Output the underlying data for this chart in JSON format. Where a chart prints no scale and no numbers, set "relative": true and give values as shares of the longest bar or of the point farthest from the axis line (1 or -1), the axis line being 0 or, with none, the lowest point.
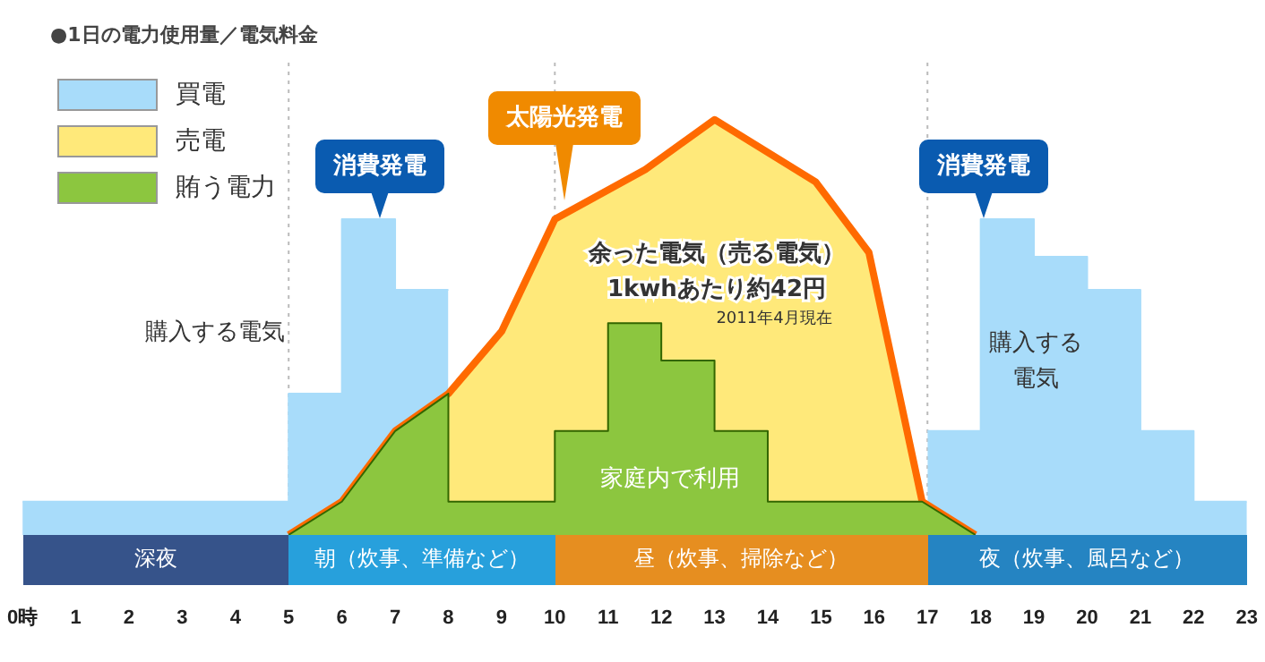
{
  "chart_data": {
    "type": "area",
    "title": "●1日の電力使用量／電気料金",
    "relative": true,
    "xlim": [
      0,
      23
    ],
    "xticks": [
      {
        "value": 0,
        "label": "0時"
      },
      1,
      2,
      3,
      4,
      5,
      6,
      7,
      8,
      9,
      10,
      11,
      12,
      13,
      14,
      15,
      16,
      17,
      18,
      19,
      20,
      21,
      22,
      23
    ],
    "series": [
      {
        "name": "買電",
        "color": "#a8dcfa",
        "x": [
          0,
          5,
          5,
          6,
          6,
          7,
          7,
          8,
          12,
          17,
          18,
          18,
          19,
          19,
          20,
          20,
          21,
          21,
          22,
          22,
          23
        ],
        "values": [
          0.08,
          0.08,
          0.34,
          0.34,
          0.76,
          0.76,
          0.59,
          0.59,
          null,
          0.25,
          0.25,
          0.76,
          0.76,
          0.67,
          0.67,
          0.59,
          0.59,
          0.25,
          0.25,
          0.08,
          0.08
        ]
      },
      {
        "name": "売電",
        "color": "#ffe97a",
        "x": [
          5,
          6,
          7,
          8,
          9,
          10,
          11.7,
          13,
          14.9,
          15.9,
          16.9,
          17.9
        ],
        "values": [
          0,
          0.08,
          0.25,
          0.34,
          0.49,
          0.76,
          0.88,
          1,
          0.85,
          0.68,
          0.08,
          0
        ]
      },
      {
        "name": "賄う電力",
        "color": "#8cc63f",
        "x": [
          5,
          6,
          7,
          8,
          8,
          10,
          10,
          11,
          11,
          12,
          12,
          13,
          13,
          14,
          14,
          16.9,
          17.9
        ],
        "values": [
          0,
          0.08,
          0.25,
          0.34,
          0.08,
          0.08,
          0.25,
          0.25,
          0.51,
          0.51,
          0.42,
          0.42,
          0.25,
          0.25,
          0.08,
          0.08,
          0
        ]
      }
    ],
    "legend": "top left",
    "ref_lines": [
      {
        "axis": "x",
        "value": 5,
        "line_style": "dotted",
        "color": "#bbbbbb"
      },
      {
        "axis": "x",
        "value": 10,
        "line_style": "dotted",
        "color": "#bbbbbb"
      },
      {
        "axis": "x",
        "value": 17,
        "line_style": "dotted",
        "color": "#bbbbbb"
      }
    ],
    "annotations": [
      "消費発電",
      "太陽光発電",
      "消費発電",
      "購入する電気",
      "購入する電気",
      "余った電気（売る電気）",
      "1kwhあたり約42円",
      "2011年4月現在",
      "家庭内で利用",
      "深夜",
      "朝（炊事、準備など）",
      "昼（炊事、掃除など）",
      "夜（炊事、風呂など）"
    ]
  }
}
